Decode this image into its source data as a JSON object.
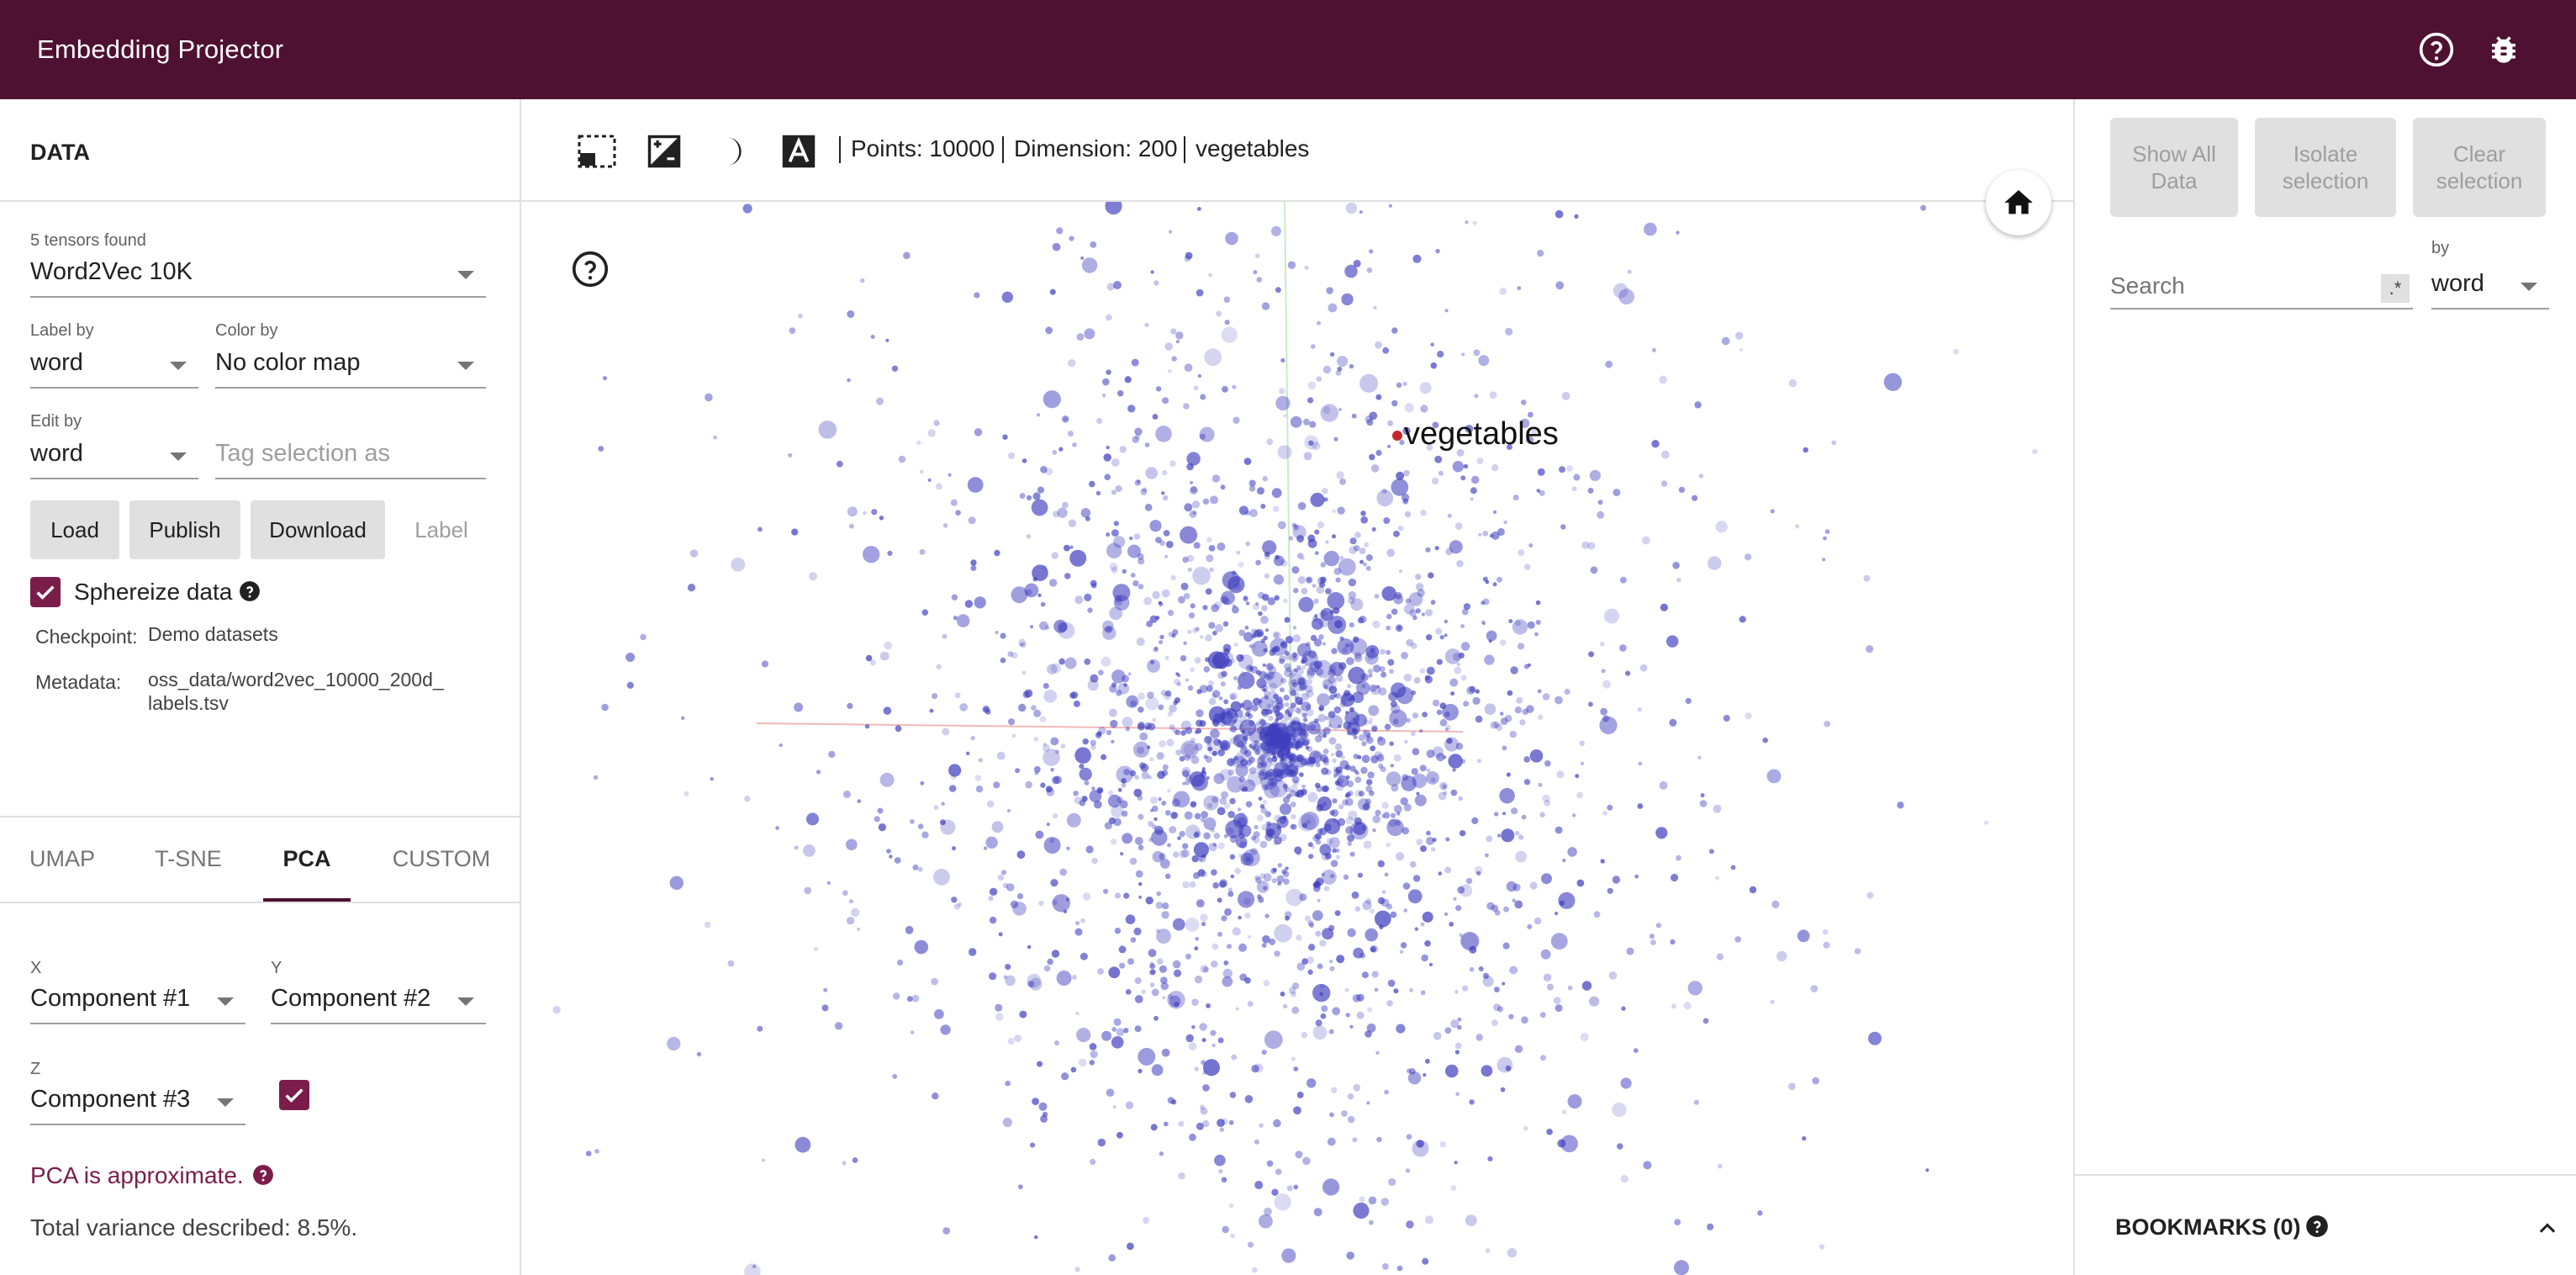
{
  "app": {
    "title": "Embedding Projector"
  },
  "header": {
    "help_icon": "help-circle-icon",
    "bug_icon": "bug-icon"
  },
  "data_panel": {
    "section_title": "DATA",
    "tensors_found": "5 tensors found",
    "tensor_selected": "Word2Vec 10K",
    "label_by_label": "Label by",
    "label_by_value": "word",
    "color_by_label": "Color by",
    "color_by_value": "No color map",
    "edit_by_label": "Edit by",
    "edit_by_value": "word",
    "tag_placeholder": "Tag selection as",
    "buttons": {
      "load": "Load",
      "publish": "Publish",
      "download": "Download",
      "label": "Label"
    },
    "sphereize_label": "Sphereize data",
    "sphereize_checked": true,
    "checkpoint_key": "Checkpoint:",
    "checkpoint_value": "Demo datasets",
    "metadata_key": "Metadata:",
    "metadata_value_line1": "oss_data/word2vec_10000_200d_",
    "metadata_value_line2": "labels.tsv"
  },
  "projection_tabs": [
    {
      "label": "UMAP",
      "active": false
    },
    {
      "label": "T-SNE",
      "active": false
    },
    {
      "label": "PCA",
      "active": true
    },
    {
      "label": "CUSTOM",
      "active": false
    }
  ],
  "pca": {
    "x_label": "X",
    "x_value": "Component #1",
    "y_label": "Y",
    "y_value": "Component #2",
    "z_label": "Z",
    "z_value": "Component #3",
    "z_enabled": true,
    "approx_warning": "PCA is approximate.",
    "variance": "Total variance described: 8.5%."
  },
  "toolbar": {
    "points": "Points: 10000",
    "dimension": "Dimension: 200",
    "selected_word": "vegetables"
  },
  "plot": {
    "label": "vegetables",
    "point_color": "#3f3fbf",
    "highlight_color": "#c62828"
  },
  "inspector": {
    "show_all": "Show All Data",
    "isolate": "Isolate selection",
    "clear": "Clear selection",
    "search_placeholder": "Search",
    "regex": ".*",
    "by_label": "by",
    "by_value": "word",
    "bookmarks": "BOOKMARKS (0)"
  },
  "colors": {
    "header": "#4e1131",
    "accent": "#7b1d4b"
  }
}
